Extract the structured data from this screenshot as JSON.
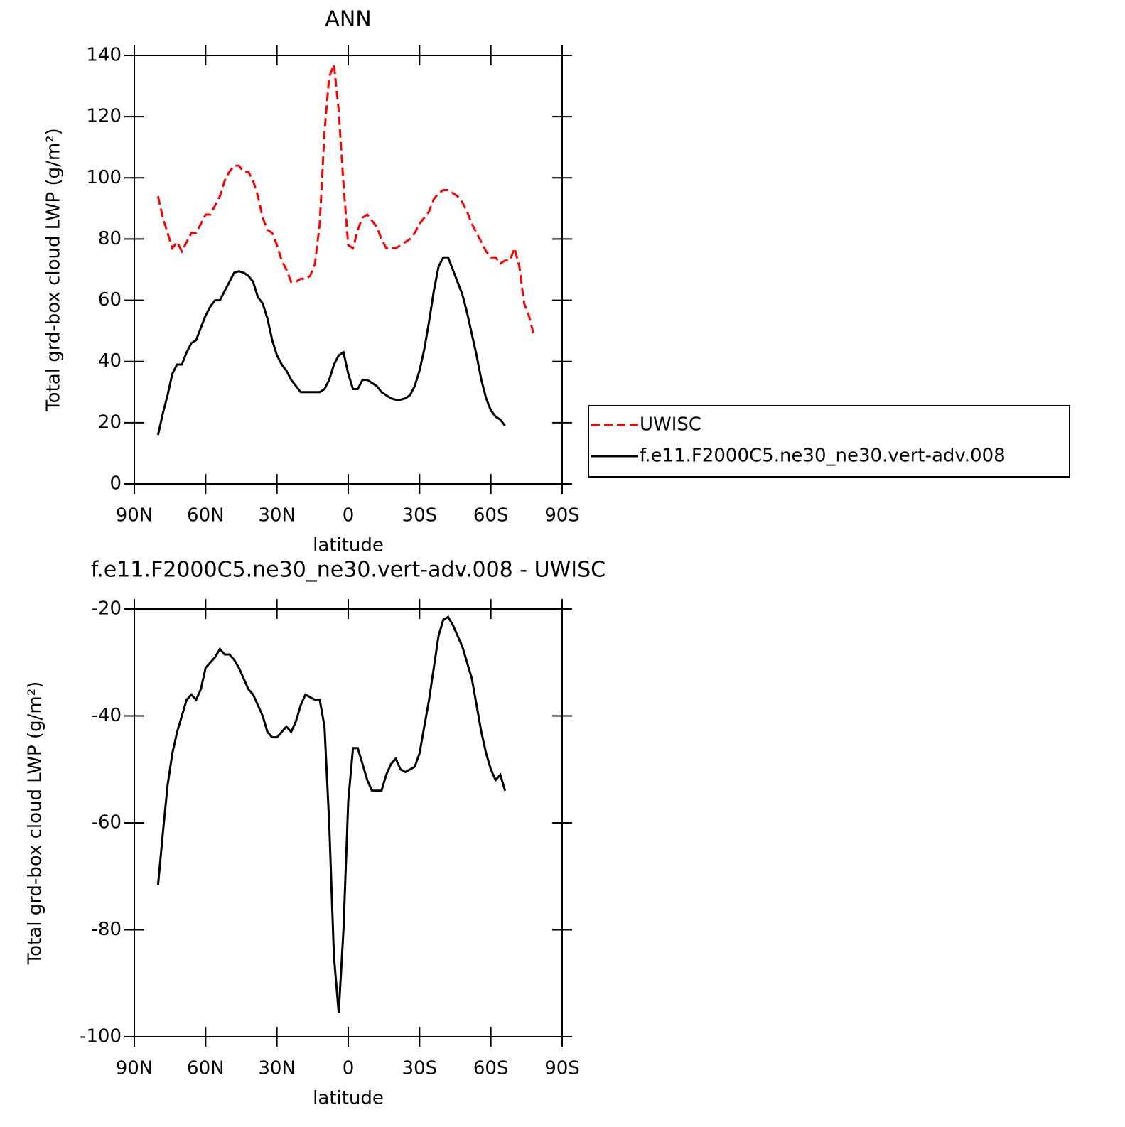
{
  "chart_data": [
    {
      "type": "line",
      "title": "ANN",
      "xlabel": "latitude",
      "ylabel": "Total grd-box cloud LWP (g/m²)",
      "x": [
        80,
        78,
        76,
        74,
        72,
        70,
        68,
        66,
        64,
        62,
        60,
        58,
        56,
        54,
        52,
        50,
        48,
        46,
        44,
        42,
        40,
        38,
        36,
        34,
        32,
        30,
        28,
        26,
        24,
        22,
        20,
        18,
        16,
        14,
        12,
        10,
        8,
        6,
        4,
        2,
        0,
        -2,
        -4,
        -6,
        -8,
        -10,
        -12,
        -14,
        -16,
        -18,
        -20,
        -22,
        -24,
        -26,
        -28,
        -30,
        -32,
        -34,
        -36,
        -38,
        -40,
        -42,
        -44,
        -46,
        -48,
        -50,
        -52,
        -54,
        -56,
        -58,
        -60,
        -62,
        -64,
        -66,
        -68,
        -70,
        -72,
        -74,
        -76,
        -78
      ],
      "xlim": [
        90,
        -90
      ],
      "xticks": [
        {
          "value": 90,
          "label": "90N"
        },
        {
          "value": 60,
          "label": "60N"
        },
        {
          "value": 30,
          "label": "30N"
        },
        0,
        {
          "value": -30,
          "label": "30S"
        },
        {
          "value": -60,
          "label": "60S"
        },
        {
          "value": -90,
          "label": "90S"
        }
      ],
      "ylim": [
        0,
        140
      ],
      "yticks": [
        0,
        20,
        40,
        60,
        80,
        100,
        120,
        140
      ],
      "legend": "right",
      "series": [
        {
          "name": "UWISC",
          "color": "#ff0000",
          "style": "dashed",
          "values": [
            94,
            87,
            82,
            77,
            79,
            76,
            79,
            82,
            82,
            85,
            88,
            88,
            91,
            94,
            99,
            102,
            104,
            104,
            102,
            102,
            99,
            94,
            87,
            83,
            82,
            78,
            73,
            70,
            66,
            66,
            67,
            67,
            68,
            72,
            85,
            115,
            133,
            137,
            122,
            98,
            78,
            77,
            83,
            87,
            88,
            86,
            84,
            80,
            77,
            77,
            77,
            78,
            79,
            80,
            82,
            85,
            87,
            89,
            93,
            95,
            96,
            96,
            95,
            94,
            92,
            89,
            85,
            82,
            79,
            76,
            74,
            74,
            72,
            73,
            73,
            77,
            71,
            59,
            55,
            49
          ]
        },
        {
          "name": "f.e11.F2000C5.ne30_ne30.vert-adv.008",
          "color": "#000000",
          "style": "solid",
          "values": [
            16,
            23,
            29,
            36,
            39,
            39,
            43,
            46,
            47,
            51,
            55,
            58,
            60,
            60,
            63,
            66,
            69,
            69.5,
            69,
            68,
            66,
            61,
            59,
            54,
            47,
            42,
            39,
            37,
            34,
            32,
            30,
            30,
            30,
            30,
            30,
            31,
            34,
            39,
            42,
            43,
            36,
            31,
            31,
            34,
            34,
            33,
            32,
            30,
            29,
            28,
            27.5,
            27.5,
            28,
            29,
            32,
            37,
            44,
            53,
            63,
            71,
            74,
            74,
            70,
            66,
            62,
            56,
            49,
            42,
            34,
            28,
            24,
            22,
            21,
            19,
            null,
            null,
            null,
            null,
            null,
            null
          ]
        }
      ]
    },
    {
      "type": "line",
      "title": "f.e11.F2000C5.ne30_ne30.vert-adv.008 - UWISC",
      "xlabel": "latitude",
      "ylabel": "Total grd-box cloud LWP (g/m²)",
      "x": [
        80,
        78,
        76,
        74,
        72,
        70,
        68,
        66,
        64,
        62,
        60,
        58,
        56,
        54,
        52,
        50,
        48,
        46,
        44,
        42,
        40,
        38,
        36,
        34,
        32,
        30,
        28,
        26,
        24,
        22,
        20,
        18,
        16,
        14,
        12,
        10,
        8,
        6,
        4,
        2,
        0,
        -2,
        -4,
        -6,
        -8,
        -10,
        -12,
        -14,
        -16,
        -18,
        -20,
        -22,
        -24,
        -26,
        -28,
        -30,
        -32,
        -34,
        -36,
        -38,
        -40,
        -42,
        -44,
        -46,
        -48,
        -50,
        -52,
        -54,
        -56,
        -58,
        -60,
        -62,
        -64,
        -66,
        -68,
        -70,
        -72,
        -74,
        -76,
        -78
      ],
      "xlim": [
        90,
        -90
      ],
      "xticks": [
        {
          "value": 90,
          "label": "90N"
        },
        {
          "value": 60,
          "label": "60N"
        },
        {
          "value": 30,
          "label": "30N"
        },
        0,
        {
          "value": -30,
          "label": "30S"
        },
        {
          "value": -60,
          "label": "60S"
        },
        {
          "value": -90,
          "label": "90S"
        }
      ],
      "ylim": [
        -100,
        -20
      ],
      "yticks": [
        -100,
        -80,
        -60,
        -40,
        -20
      ],
      "series": [
        {
          "color": "#000000",
          "style": "solid",
          "values": [
            -71.6,
            -62,
            -53,
            -47,
            -43,
            -40,
            -37,
            -36,
            -37,
            -35,
            -31,
            -30,
            -29,
            -27.5,
            -28.5,
            -28.5,
            -29.5,
            -31,
            -33,
            -35,
            -36,
            -38,
            -40,
            -43,
            -44,
            -44,
            -43,
            -42,
            -43,
            -41,
            -38,
            -36,
            -36.5,
            -37,
            -37,
            -42,
            -60,
            -85,
            -95.5,
            -80,
            -56,
            -46,
            -46,
            -49,
            -52,
            -54,
            -54,
            -54,
            -51,
            -49,
            -48,
            -50,
            -50.5,
            -50,
            -49.5,
            -47,
            -42,
            -37,
            -31,
            -25,
            -22,
            -21.5,
            -23,
            -25,
            -27,
            -30,
            -33,
            -38,
            -43,
            -47,
            -50,
            -52,
            -51,
            -54,
            null,
            null,
            null,
            null,
            null,
            null
          ]
        }
      ]
    }
  ]
}
